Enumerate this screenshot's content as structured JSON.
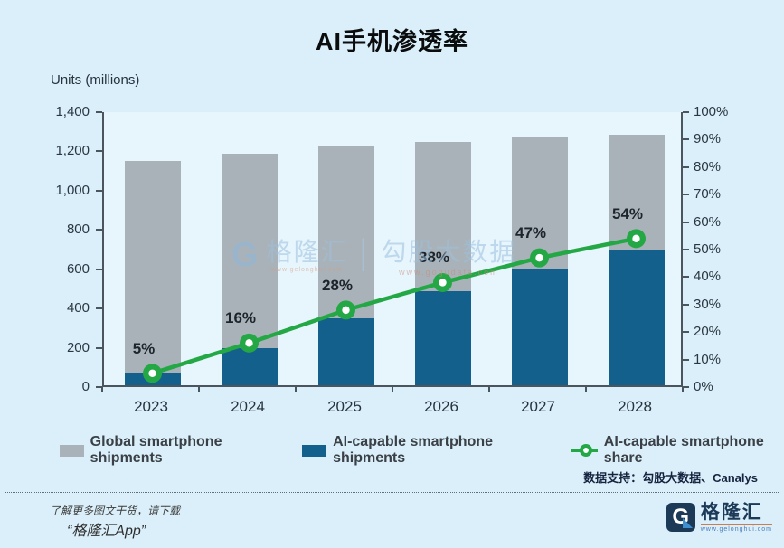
{
  "page": {
    "title": "AI手机渗透率",
    "background": "#DAEFF9"
  },
  "chart_data": {
    "type": "bar+line",
    "categories": [
      "2023",
      "2024",
      "2025",
      "2026",
      "2027",
      "2028"
    ],
    "series": [
      {
        "name": "Global smartphone shipments",
        "type": "bar",
        "color": "#A9B2B8",
        "values": [
          1140,
          1180,
          1215,
          1240,
          1260,
          1275
        ]
      },
      {
        "name": "AI-capable smartphone shipments",
        "type": "bar",
        "color": "#14608D",
        "values": [
          60,
          190,
          340,
          480,
          595,
          690
        ]
      },
      {
        "name": "AI-capable smartphone share",
        "type": "line",
        "color": "#23A845",
        "values": [
          5,
          16,
          28,
          38,
          47,
          54
        ],
        "labels": [
          "5%",
          "16%",
          "28%",
          "38%",
          "47%",
          "54%"
        ]
      }
    ],
    "title": "AI手机渗透率",
    "left_axis": {
      "label": "Units (millions)",
      "min": 0,
      "max": 1400,
      "ticks": [
        "0",
        "200",
        "400",
        "600",
        "800",
        "1,000",
        "1,200",
        "1,400"
      ]
    },
    "right_axis": {
      "min": 0,
      "max": 100,
      "ticks": [
        "0%",
        "10%",
        "20%",
        "30%",
        "40%",
        "50%",
        "60%",
        "70%",
        "80%",
        "90%",
        "100%"
      ]
    },
    "grid": false,
    "legend_position": "bottom"
  },
  "legend": {
    "items": [
      {
        "label": "Global smartphone shipments",
        "type": "bar",
        "color": "#A9B2B8"
      },
      {
        "label": "AI-capable smartphone shipments",
        "type": "bar",
        "color": "#14608D"
      },
      {
        "label": "AI-capable smartphone share",
        "type": "line",
        "color": "#23A845"
      }
    ]
  },
  "source_note": "数据支持：勾股大数据、Canalys",
  "watermark": {
    "g": "G",
    "name": "格隆汇",
    "name_url": "www.gelonghui.com",
    "separator": "│",
    "data_brand": "勾股大数据",
    "data_url": "www.gogudata.com"
  },
  "footer": {
    "promo_line1": "了解更多图文干货，请下载",
    "promo_line2": "“格隆汇App”",
    "brand_g": "G",
    "brand_name": "格隆汇",
    "brand_url": "www.gelonghui.com"
  }
}
